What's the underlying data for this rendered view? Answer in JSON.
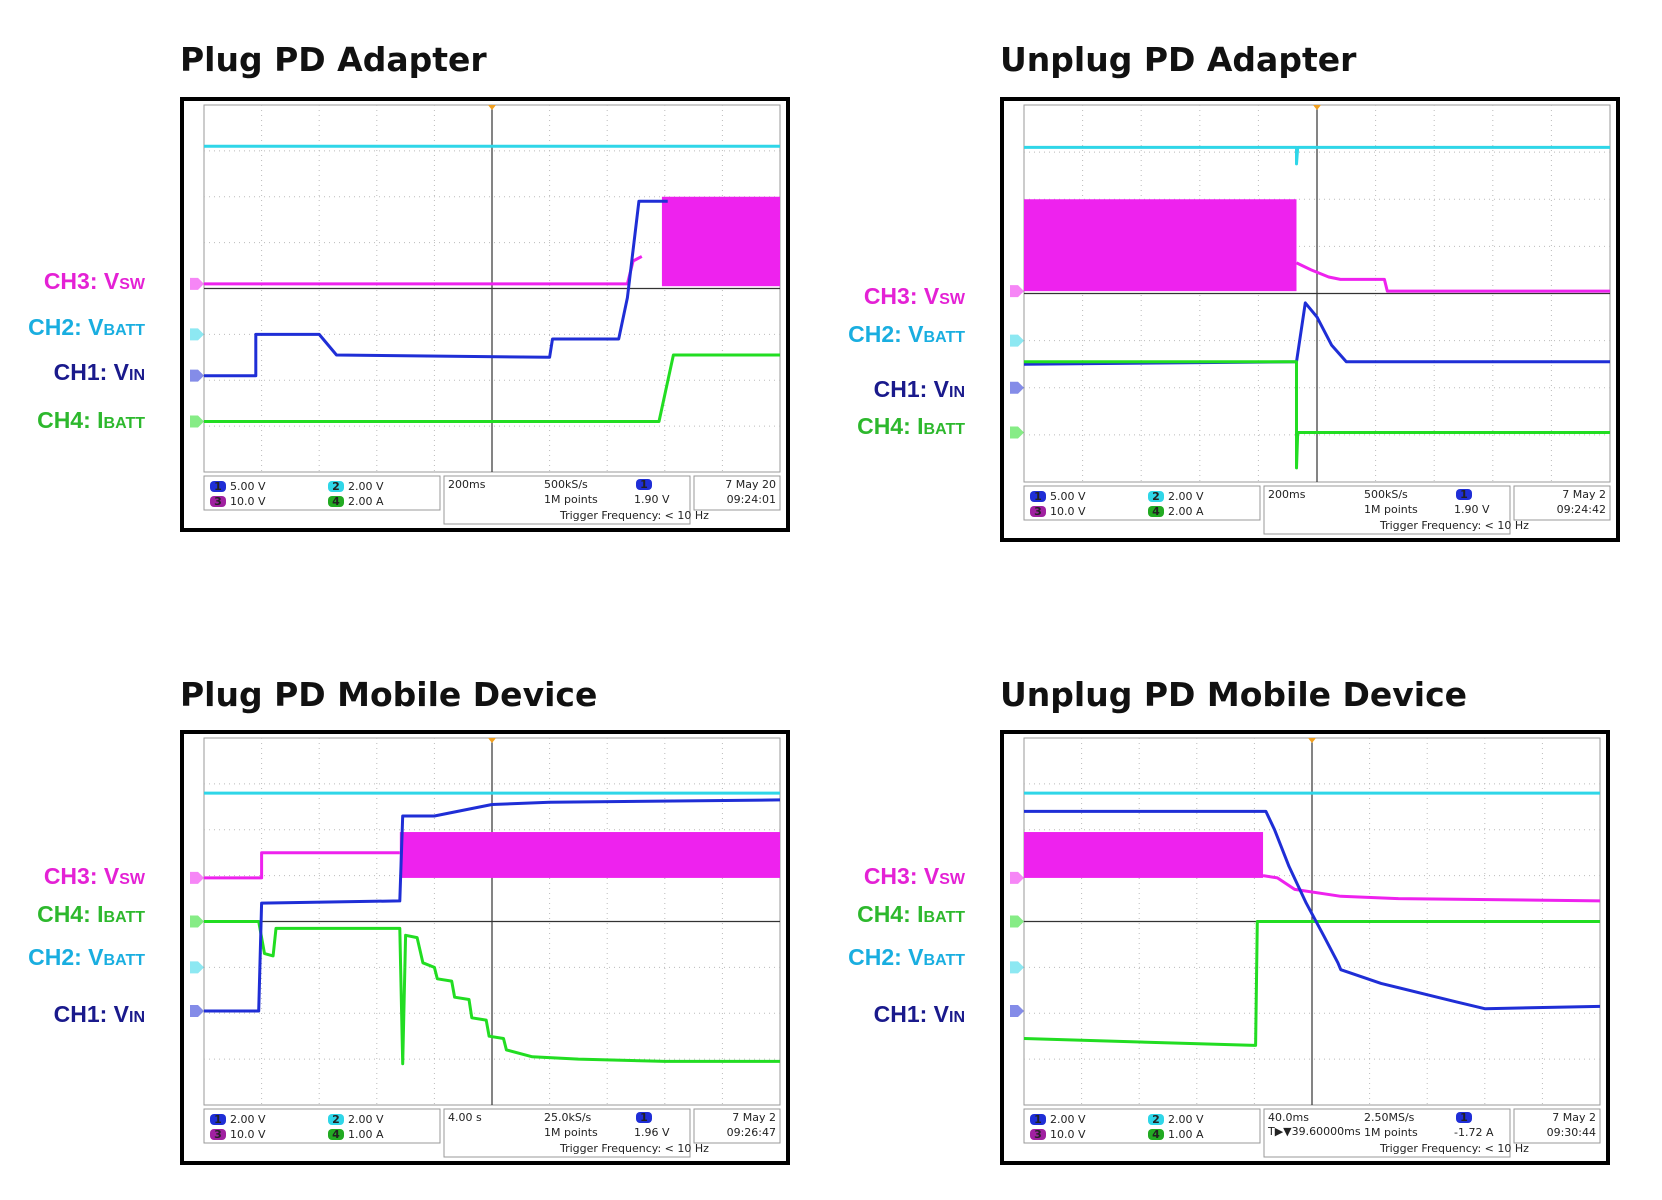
{
  "channel_colors": {
    "CH1": "#1f2ed6",
    "CH2": "#2fd6e8",
    "CH3": "#ee22ee",
    "CH4": "#22dd22"
  },
  "label_colors": {
    "CH1": "#1a1a8c",
    "CH2": "#19aee0",
    "CH3": "#e421d5",
    "CH4": "#2db82d"
  },
  "panels": [
    {
      "id": "plug-pd-adapter",
      "title": "Plug PD Adapter",
      "labels": [
        {
          "ch": "CH3",
          "prefix": "CH3: ",
          "main": "V",
          "sub": "SW"
        },
        {
          "ch": "CH2",
          "prefix": "CH2: ",
          "main": "V",
          "sub": "BATT"
        },
        {
          "ch": "CH1",
          "prefix": "CH1: ",
          "main": "V",
          "sub": "IN"
        },
        {
          "ch": "CH4",
          "prefix": "CH4: ",
          "main": "I",
          "sub": "BATT"
        }
      ],
      "readout": {
        "ch1_scale": "5.00 V",
        "ch2_scale": "2.00 V",
        "ch3_scale": "10.0 V",
        "ch4_scale": "2.00 A",
        "timebase": "200ms",
        "sample_rate": "500kS/s",
        "record": "1M points",
        "trigger_level": "1.90 V",
        "trigger_freq": "Trigger Frequency: < 10 Hz",
        "date": "7 May 20",
        "time": "09:24:01",
        "trigger_offset": ""
      }
    },
    {
      "id": "unplug-pd-adapter",
      "title": "Unplug PD Adapter",
      "labels": [
        {
          "ch": "CH3",
          "prefix": "CH3: ",
          "main": "V",
          "sub": "SW"
        },
        {
          "ch": "CH2",
          "prefix": "CH2: ",
          "main": "V",
          "sub": "BATT"
        },
        {
          "ch": "CH1",
          "prefix": "CH1: ",
          "main": "V",
          "sub": "IN"
        },
        {
          "ch": "CH4",
          "prefix": "CH4: ",
          "main": "I",
          "sub": "BATT"
        }
      ],
      "readout": {
        "ch1_scale": "5.00 V",
        "ch2_scale": "2.00 V",
        "ch3_scale": "10.0 V",
        "ch4_scale": "2.00 A",
        "timebase": "200ms",
        "sample_rate": "500kS/s",
        "record": "1M points",
        "trigger_level": "1.90 V",
        "trigger_freq": "Trigger Frequency: < 10 Hz",
        "date": "7 May 2",
        "time": "09:24:42",
        "trigger_offset": ""
      }
    },
    {
      "id": "plug-pd-mobile-device",
      "title": "Plug PD Mobile Device",
      "labels": [
        {
          "ch": "CH3",
          "prefix": "CH3: ",
          "main": "V",
          "sub": "SW"
        },
        {
          "ch": "CH4",
          "prefix": "CH4: ",
          "main": "I",
          "sub": "BATT"
        },
        {
          "ch": "CH2",
          "prefix": "CH2: ",
          "main": "V",
          "sub": "BATT"
        },
        {
          "ch": "CH1",
          "prefix": "CH1: ",
          "main": "V",
          "sub": "IN"
        }
      ],
      "readout": {
        "ch1_scale": "2.00 V",
        "ch2_scale": "2.00 V",
        "ch3_scale": "10.0 V",
        "ch4_scale": "1.00 A",
        "timebase": "4.00 s",
        "sample_rate": "25.0kS/s",
        "record": "1M points",
        "trigger_level": "1.96 V",
        "trigger_freq": "Trigger Frequency: < 10 Hz",
        "date": "7 May 2",
        "time": "09:26:47",
        "trigger_offset": ""
      }
    },
    {
      "id": "unplug-pd-mobile-device",
      "title": "Unplug PD Mobile Device",
      "labels": [
        {
          "ch": "CH3",
          "prefix": "CH3: ",
          "main": "V",
          "sub": "SW"
        },
        {
          "ch": "CH4",
          "prefix": "CH4: ",
          "main": "I",
          "sub": "BATT"
        },
        {
          "ch": "CH2",
          "prefix": "CH2: ",
          "main": "V",
          "sub": "BATT"
        },
        {
          "ch": "CH1",
          "prefix": "CH1: ",
          "main": "V",
          "sub": "IN"
        }
      ],
      "readout": {
        "ch1_scale": "2.00 V",
        "ch2_scale": "2.00 V",
        "ch3_scale": "10.0 V",
        "ch4_scale": "1.00 A",
        "timebase": "40.0ms",
        "sample_rate": "2.50MS/s",
        "record": "1M points",
        "trigger_level": "-1.72 A",
        "trigger_freq": "Trigger Frequency: < 10 Hz",
        "date": "7 May 2",
        "time": "09:30:44",
        "trigger_offset": "T▶▼39.60000ms"
      }
    }
  ],
  "chart_data": [
    {
      "type": "line",
      "title": "Plug PD Adapter",
      "xlim": [
        -5,
        5
      ],
      "ylim": [
        -4,
        4
      ],
      "series": [
        {
          "name": "CH2: VBATT",
          "points": [
            [
              -5,
              3.1
            ],
            [
              5,
              3.1
            ]
          ]
        },
        {
          "name": "CH3: VSW",
          "points": [
            [
              -5,
              0.1
            ],
            [
              2.35,
              0.1
            ],
            [
              2.45,
              0.6
            ],
            [
              2.6,
              0.7
            ]
          ],
          "burst": {
            "x0": 2.95,
            "x1": 5,
            "lo": 0.05,
            "hi": 2.0
          }
        },
        {
          "name": "CH1: VIN",
          "points": [
            [
              -5,
              -1.9
            ],
            [
              -4.1,
              -1.9
            ],
            [
              -4.1,
              -1.0
            ],
            [
              -3.0,
              -1.0
            ],
            [
              -2.7,
              -1.45
            ],
            [
              1.0,
              -1.5
            ],
            [
              1.05,
              -1.1
            ],
            [
              2.2,
              -1.1
            ],
            [
              2.35,
              -0.2
            ],
            [
              2.55,
              1.9
            ],
            [
              3.05,
              1.9
            ]
          ]
        },
        {
          "name": "CH4: IBATT",
          "points": [
            [
              -5,
              -2.9
            ],
            [
              2.9,
              -2.9
            ],
            [
              3.15,
              -1.45
            ],
            [
              5,
              -1.45
            ]
          ]
        }
      ]
    },
    {
      "type": "line",
      "title": "Unplug PD Adapter",
      "xlim": [
        -5,
        5
      ],
      "ylim": [
        -4,
        4
      ],
      "series": [
        {
          "name": "CH2: VBATT",
          "points": [
            [
              -5,
              3.1
            ],
            [
              -0.35,
              3.1
            ],
            [
              -0.35,
              2.75
            ],
            [
              -0.33,
              3.1
            ],
            [
              5,
              3.1
            ]
          ]
        },
        {
          "name": "CH3: VSW",
          "points": [
            [
              -0.35,
              0.65
            ],
            [
              -0.1,
              0.5
            ],
            [
              0.2,
              0.35
            ],
            [
              0.4,
              0.3
            ],
            [
              1.15,
              0.3
            ],
            [
              1.2,
              0.05
            ],
            [
              5,
              0.05
            ]
          ],
          "burst": {
            "x0": -5,
            "x1": -0.35,
            "lo": 0.05,
            "hi": 2.0
          }
        },
        {
          "name": "CH1: VIN",
          "points": [
            [
              -5,
              -1.5
            ],
            [
              -0.35,
              -1.45
            ],
            [
              -0.2,
              -0.2
            ],
            [
              0,
              -0.5
            ],
            [
              0.25,
              -1.1
            ],
            [
              0.5,
              -1.45
            ],
            [
              5,
              -1.45
            ]
          ]
        },
        {
          "name": "CH4: IBATT",
          "points": [
            [
              -5,
              -1.45
            ],
            [
              -0.35,
              -1.45
            ],
            [
              -0.35,
              -3.7
            ],
            [
              -0.33,
              -2.95
            ],
            [
              5,
              -2.95
            ]
          ]
        }
      ]
    },
    {
      "type": "line",
      "title": "Plug PD Mobile Device",
      "xlim": [
        -5,
        5
      ],
      "ylim": [
        -4,
        4
      ],
      "series": [
        {
          "name": "CH2: VBATT",
          "points": [
            [
              -5,
              2.8
            ],
            [
              5,
              2.8
            ]
          ]
        },
        {
          "name": "CH3: VSW",
          "points": [
            [
              -5,
              0.95
            ],
            [
              -4.0,
              0.95
            ],
            [
              -4.0,
              1.5
            ],
            [
              -1.6,
              1.5
            ]
          ],
          "burst": {
            "x0": -1.6,
            "x1": 5,
            "lo": 0.95,
            "hi": 1.95
          }
        },
        {
          "name": "CH4: IBATT",
          "points": [
            [
              -5,
              0
            ],
            [
              -4.05,
              0
            ],
            [
              -3.95,
              -0.7
            ],
            [
              -3.8,
              -0.75
            ],
            [
              -3.75,
              -0.15
            ],
            [
              -1.6,
              -0.15
            ],
            [
              -1.55,
              -3.1
            ],
            [
              -1.5,
              -0.3
            ],
            [
              -1.3,
              -0.35
            ],
            [
              -1.2,
              -0.9
            ],
            [
              -1.0,
              -1.0
            ],
            [
              -0.95,
              -1.25
            ],
            [
              -0.7,
              -1.3
            ],
            [
              -0.65,
              -1.65
            ],
            [
              -0.4,
              -1.7
            ],
            [
              -0.35,
              -2.1
            ],
            [
              -0.1,
              -2.15
            ],
            [
              -0.05,
              -2.5
            ],
            [
              0.2,
              -2.55
            ],
            [
              0.25,
              -2.8
            ],
            [
              0.7,
              -2.95
            ],
            [
              1.5,
              -3.0
            ],
            [
              3.0,
              -3.05
            ],
            [
              5,
              -3.05
            ]
          ]
        },
        {
          "name": "CH1: VIN",
          "points": [
            [
              -5,
              -1.95
            ],
            [
              -4.05,
              -1.95
            ],
            [
              -4.0,
              0.4
            ],
            [
              -1.6,
              0.45
            ],
            [
              -1.55,
              2.3
            ],
            [
              -1.0,
              2.3
            ],
            [
              0,
              2.55
            ],
            [
              1,
              2.6
            ],
            [
              5,
              2.65
            ]
          ]
        }
      ]
    },
    {
      "type": "line",
      "title": "Unplug PD Mobile Device",
      "xlim": [
        -5,
        5
      ],
      "ylim": [
        -4,
        4
      ],
      "series": [
        {
          "name": "CH2: VBATT",
          "points": [
            [
              -5,
              2.8
            ],
            [
              5,
              2.8
            ]
          ]
        },
        {
          "name": "CH3: VSW",
          "points": [
            [
              -0.85,
              1.0
            ],
            [
              -0.6,
              0.95
            ],
            [
              -0.3,
              0.7
            ],
            [
              0.5,
              0.55
            ],
            [
              1.5,
              0.5
            ],
            [
              5,
              0.45
            ]
          ],
          "burst": {
            "x0": -5,
            "x1": -0.85,
            "lo": 0.95,
            "hi": 1.95
          }
        },
        {
          "name": "CH4: IBATT",
          "points": [
            [
              -5,
              -2.55
            ],
            [
              -1.0,
              -2.7
            ],
            [
              -0.98,
              -2.7
            ],
            [
              -0.95,
              0
            ],
            [
              5,
              0
            ]
          ]
        },
        {
          "name": "CH1: VIN",
          "points": [
            [
              -5,
              2.4
            ],
            [
              -0.8,
              2.4
            ],
            [
              -0.65,
              2.0
            ],
            [
              -0.4,
              1.2
            ],
            [
              -0.1,
              0.4
            ],
            [
              0.2,
              -0.3
            ],
            [
              0.45,
              -0.9
            ],
            [
              0.5,
              -1.05
            ],
            [
              1.2,
              -1.35
            ],
            [
              2.5,
              -1.75
            ],
            [
              3.0,
              -1.9
            ],
            [
              5,
              -1.85
            ]
          ]
        }
      ]
    }
  ]
}
